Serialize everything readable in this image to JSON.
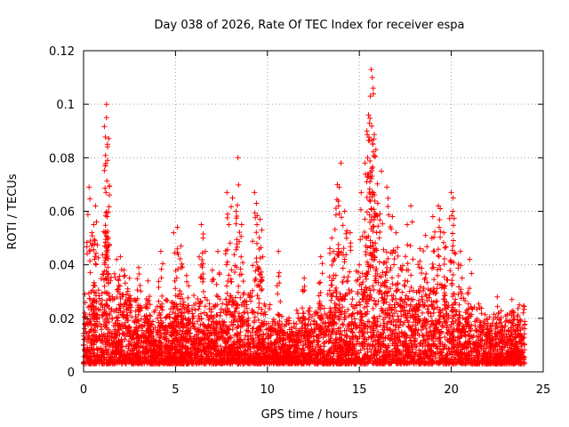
{
  "chart_data": {
    "type": "scatter",
    "title": "Day 038 of 2026, Rate Of TEC Index for receiver espa",
    "xlabel": "GPS time / hours",
    "ylabel": "ROTI / TECUs",
    "xlim": [
      0,
      25
    ],
    "ylim": [
      0,
      0.12
    ],
    "x_ticks": [
      0,
      5,
      10,
      15,
      20,
      25
    ],
    "y_ticks": [
      0,
      0.02,
      0.04,
      0.06,
      0.08,
      0.1,
      0.12
    ],
    "x_tick_labels": [
      "0",
      "5",
      "10",
      "15",
      "20",
      "25"
    ],
    "y_tick_labels": [
      "0",
      "0.02",
      "0.04",
      "0.06",
      "0.08",
      "0.1",
      "0.12"
    ],
    "grid": true,
    "marker": "+",
    "color": "#ff0000",
    "series": [
      {
        "name": "ROTI",
        "x": [
          1.25,
          1.25,
          1.3,
          1.3,
          1.22,
          1.28,
          0.3,
          0.55,
          0.65,
          0.7,
          0.45,
          1.15,
          1.8,
          2.0,
          2.2,
          2.5,
          3.0,
          3.5,
          4.2,
          4.9,
          5.1,
          5.3,
          5.6,
          6.4,
          6.5,
          7.0,
          7.3,
          7.8,
          7.9,
          8.1,
          8.3,
          8.4,
          8.6,
          9.3,
          9.4,
          9.6,
          9.7,
          10.6,
          12.0,
          12.9,
          13.5,
          13.6,
          13.8,
          13.9,
          14.0,
          14.2,
          14.5,
          15.1,
          15.3,
          15.4,
          15.45,
          15.5,
          15.55,
          15.6,
          15.65,
          15.7,
          15.75,
          15.8,
          15.9,
          16.0,
          16.2,
          16.5,
          16.8,
          17.0,
          17.6,
          17.8,
          18.3,
          18.6,
          19.0,
          19.3,
          19.4,
          19.6,
          20.0,
          20.1,
          20.5,
          21.0,
          22.5,
          23.3,
          23.7
        ],
        "y": [
          0.1,
          0.095,
          0.085,
          0.079,
          0.067,
          0.058,
          0.069,
          0.055,
          0.062,
          0.056,
          0.052,
          0.047,
          0.042,
          0.043,
          0.038,
          0.035,
          0.039,
          0.034,
          0.045,
          0.052,
          0.054,
          0.047,
          0.036,
          0.055,
          0.05,
          0.038,
          0.045,
          0.067,
          0.055,
          0.065,
          0.06,
          0.08,
          0.055,
          0.067,
          0.063,
          0.057,
          0.053,
          0.045,
          0.035,
          0.043,
          0.05,
          0.045,
          0.07,
          0.069,
          0.078,
          0.06,
          0.052,
          0.067,
          0.078,
          0.071,
          0.08,
          0.096,
          0.093,
          0.103,
          0.113,
          0.11,
          0.106,
          0.087,
          0.083,
          0.063,
          0.075,
          0.069,
          0.058,
          0.052,
          0.055,
          0.062,
          0.046,
          0.051,
          0.058,
          0.062,
          0.061,
          0.052,
          0.067,
          0.065,
          0.045,
          0.042,
          0.028,
          0.027,
          0.025
        ]
      }
    ],
    "background_model": {
      "description": "dense band of ROTI values across 0-24 h",
      "hourly_baseline_max": [
        0.028,
        0.032,
        0.03,
        0.028,
        0.024,
        0.026,
        0.025,
        0.024,
        0.026,
        0.028,
        0.024,
        0.018,
        0.022,
        0.028,
        0.032,
        0.036,
        0.038,
        0.036,
        0.034,
        0.036,
        0.032,
        0.026,
        0.022,
        0.02,
        0.022
      ],
      "min_value": 0.003
    }
  }
}
